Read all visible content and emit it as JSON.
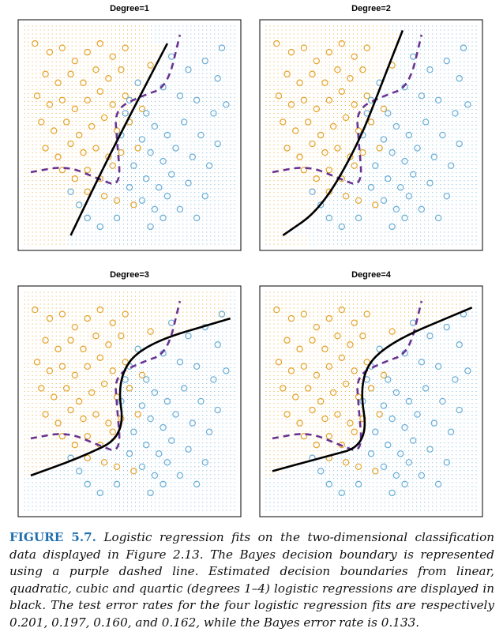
{
  "colors": {
    "orange": "#e5a32a",
    "blue": "#6aaed6",
    "bayes": "#6a3392",
    "fit": "#000000",
    "caption_label": "#1f6fae"
  },
  "caption": {
    "label": "FIGURE 5.7.",
    "text": "Logistic regression fits on the two-dimensional classification data displayed in Figure 2.13. The Bayes decision boundary is represented using a purple dashed line. Estimated decision boundaries from linear, quadratic, cubic and quartic (degrees 1–4) logistic regressions are displayed in black. The test error rates for the four logistic regression fits are respectively 0.201, 0.197, 0.160, and 0.162, while the Bayes error rate is 0.133."
  },
  "chart_data": [
    {
      "type": "scatter",
      "title": "Degree=1",
      "xlabel": "",
      "ylabel": "",
      "xlim": [
        0,
        1
      ],
      "ylim": [
        0,
        1
      ],
      "grid": false,
      "degree": 1,
      "fit_boundary": [
        [
          0.22,
          0.04
        ],
        [
          0.38,
          0.36
        ],
        [
          0.55,
          0.68
        ],
        [
          0.68,
          0.92
        ]
      ],
      "bayes_boundary": [
        [
          0.03,
          0.33
        ],
        [
          0.2,
          0.36
        ],
        [
          0.35,
          0.3
        ],
        [
          0.46,
          0.26
        ],
        [
          0.44,
          0.48
        ],
        [
          0.43,
          0.62
        ],
        [
          0.56,
          0.68
        ],
        [
          0.68,
          0.72
        ],
        [
          0.74,
          0.96
        ]
      ]
    },
    {
      "type": "scatter",
      "title": "Degree=2",
      "xlabel": "",
      "ylabel": "",
      "xlim": [
        0,
        1
      ],
      "ylim": [
        0,
        1
      ],
      "grid": false,
      "degree": 2,
      "fit_boundary": [
        [
          0.08,
          0.04
        ],
        [
          0.26,
          0.16
        ],
        [
          0.44,
          0.46
        ],
        [
          0.56,
          0.76
        ],
        [
          0.65,
          0.98
        ]
      ],
      "bayes_boundary": [
        [
          0.03,
          0.33
        ],
        [
          0.2,
          0.36
        ],
        [
          0.35,
          0.3
        ],
        [
          0.46,
          0.26
        ],
        [
          0.44,
          0.48
        ],
        [
          0.43,
          0.62
        ],
        [
          0.56,
          0.68
        ],
        [
          0.68,
          0.72
        ],
        [
          0.74,
          0.96
        ]
      ]
    },
    {
      "type": "scatter",
      "title": "Degree=3",
      "xlabel": "",
      "ylabel": "",
      "xlim": [
        0,
        1
      ],
      "ylim": [
        0,
        1
      ],
      "grid": false,
      "degree": 3,
      "fit_boundary": [
        [
          0.03,
          0.16
        ],
        [
          0.26,
          0.24
        ],
        [
          0.48,
          0.34
        ],
        [
          0.44,
          0.6
        ],
        [
          0.56,
          0.76
        ],
        [
          0.98,
          0.88
        ]
      ],
      "bayes_boundary": [
        [
          0.03,
          0.33
        ],
        [
          0.2,
          0.36
        ],
        [
          0.35,
          0.3
        ],
        [
          0.46,
          0.26
        ],
        [
          0.44,
          0.48
        ],
        [
          0.43,
          0.62
        ],
        [
          0.56,
          0.68
        ],
        [
          0.68,
          0.72
        ],
        [
          0.74,
          0.96
        ]
      ]
    },
    {
      "type": "scatter",
      "title": "Degree=4",
      "xlabel": "",
      "ylabel": "",
      "xlim": [
        0,
        1
      ],
      "ylim": [
        0,
        1
      ],
      "grid": false,
      "degree": 4,
      "fit_boundary": [
        [
          0.03,
          0.18
        ],
        [
          0.26,
          0.24
        ],
        [
          0.49,
          0.3
        ],
        [
          0.44,
          0.6
        ],
        [
          0.56,
          0.76
        ],
        [
          0.98,
          0.93
        ]
      ],
      "bayes_boundary": [
        [
          0.03,
          0.33
        ],
        [
          0.2,
          0.36
        ],
        [
          0.35,
          0.3
        ],
        [
          0.46,
          0.26
        ],
        [
          0.44,
          0.48
        ],
        [
          0.43,
          0.62
        ],
        [
          0.56,
          0.68
        ],
        [
          0.68,
          0.72
        ],
        [
          0.74,
          0.96
        ]
      ]
    }
  ],
  "points": {
    "orange": [
      [
        0.05,
        0.92
      ],
      [
        0.12,
        0.88
      ],
      [
        0.18,
        0.9
      ],
      [
        0.24,
        0.84
      ],
      [
        0.3,
        0.88
      ],
      [
        0.36,
        0.92
      ],
      [
        0.42,
        0.86
      ],
      [
        0.48,
        0.9
      ],
      [
        0.1,
        0.78
      ],
      [
        0.16,
        0.74
      ],
      [
        0.22,
        0.78
      ],
      [
        0.28,
        0.74
      ],
      [
        0.34,
        0.8
      ],
      [
        0.4,
        0.76
      ],
      [
        0.46,
        0.8
      ],
      [
        0.06,
        0.68
      ],
      [
        0.12,
        0.64
      ],
      [
        0.18,
        0.66
      ],
      [
        0.24,
        0.62
      ],
      [
        0.3,
        0.66
      ],
      [
        0.36,
        0.7
      ],
      [
        0.42,
        0.64
      ],
      [
        0.48,
        0.68
      ],
      [
        0.08,
        0.56
      ],
      [
        0.14,
        0.52
      ],
      [
        0.2,
        0.56
      ],
      [
        0.26,
        0.5
      ],
      [
        0.32,
        0.54
      ],
      [
        0.38,
        0.58
      ],
      [
        0.44,
        0.52
      ],
      [
        0.5,
        0.56
      ],
      [
        0.1,
        0.44
      ],
      [
        0.16,
        0.4
      ],
      [
        0.22,
        0.46
      ],
      [
        0.28,
        0.42
      ],
      [
        0.34,
        0.44
      ],
      [
        0.4,
        0.4
      ],
      [
        0.46,
        0.42
      ],
      [
        0.18,
        0.34
      ],
      [
        0.24,
        0.3
      ],
      [
        0.3,
        0.34
      ],
      [
        0.36,
        0.3
      ],
      [
        0.42,
        0.36
      ],
      [
        0.3,
        0.24
      ],
      [
        0.38,
        0.22
      ],
      [
        0.44,
        0.2
      ],
      [
        0.52,
        0.18
      ],
      [
        0.56,
        0.62
      ],
      [
        0.6,
        0.82
      ],
      [
        0.54,
        0.44
      ]
    ],
    "blue": [
      [
        0.7,
        0.86
      ],
      [
        0.78,
        0.8
      ],
      [
        0.86,
        0.84
      ],
      [
        0.92,
        0.76
      ],
      [
        0.66,
        0.72
      ],
      [
        0.74,
        0.68
      ],
      [
        0.82,
        0.66
      ],
      [
        0.9,
        0.6
      ],
      [
        0.58,
        0.6
      ],
      [
        0.62,
        0.54
      ],
      [
        0.68,
        0.5
      ],
      [
        0.76,
        0.56
      ],
      [
        0.84,
        0.5
      ],
      [
        0.92,
        0.46
      ],
      [
        0.56,
        0.48
      ],
      [
        0.6,
        0.42
      ],
      [
        0.66,
        0.38
      ],
      [
        0.72,
        0.44
      ],
      [
        0.8,
        0.4
      ],
      [
        0.88,
        0.36
      ],
      [
        0.52,
        0.36
      ],
      [
        0.58,
        0.3
      ],
      [
        0.64,
        0.26
      ],
      [
        0.7,
        0.32
      ],
      [
        0.78,
        0.28
      ],
      [
        0.86,
        0.22
      ],
      [
        0.5,
        0.26
      ],
      [
        0.56,
        0.2
      ],
      [
        0.62,
        0.16
      ],
      [
        0.68,
        0.22
      ],
      [
        0.74,
        0.16
      ],
      [
        0.82,
        0.12
      ],
      [
        0.3,
        0.12
      ],
      [
        0.36,
        0.08
      ],
      [
        0.26,
        0.18
      ],
      [
        0.22,
        0.24
      ],
      [
        0.44,
        0.12
      ],
      [
        0.6,
        0.08
      ],
      [
        0.66,
        0.12
      ],
      [
        0.5,
        0.66
      ],
      [
        0.54,
        0.74
      ],
      [
        0.48,
        0.6
      ],
      [
        0.46,
        0.5
      ],
      [
        0.96,
        0.64
      ],
      [
        0.94,
        0.9
      ]
    ]
  }
}
